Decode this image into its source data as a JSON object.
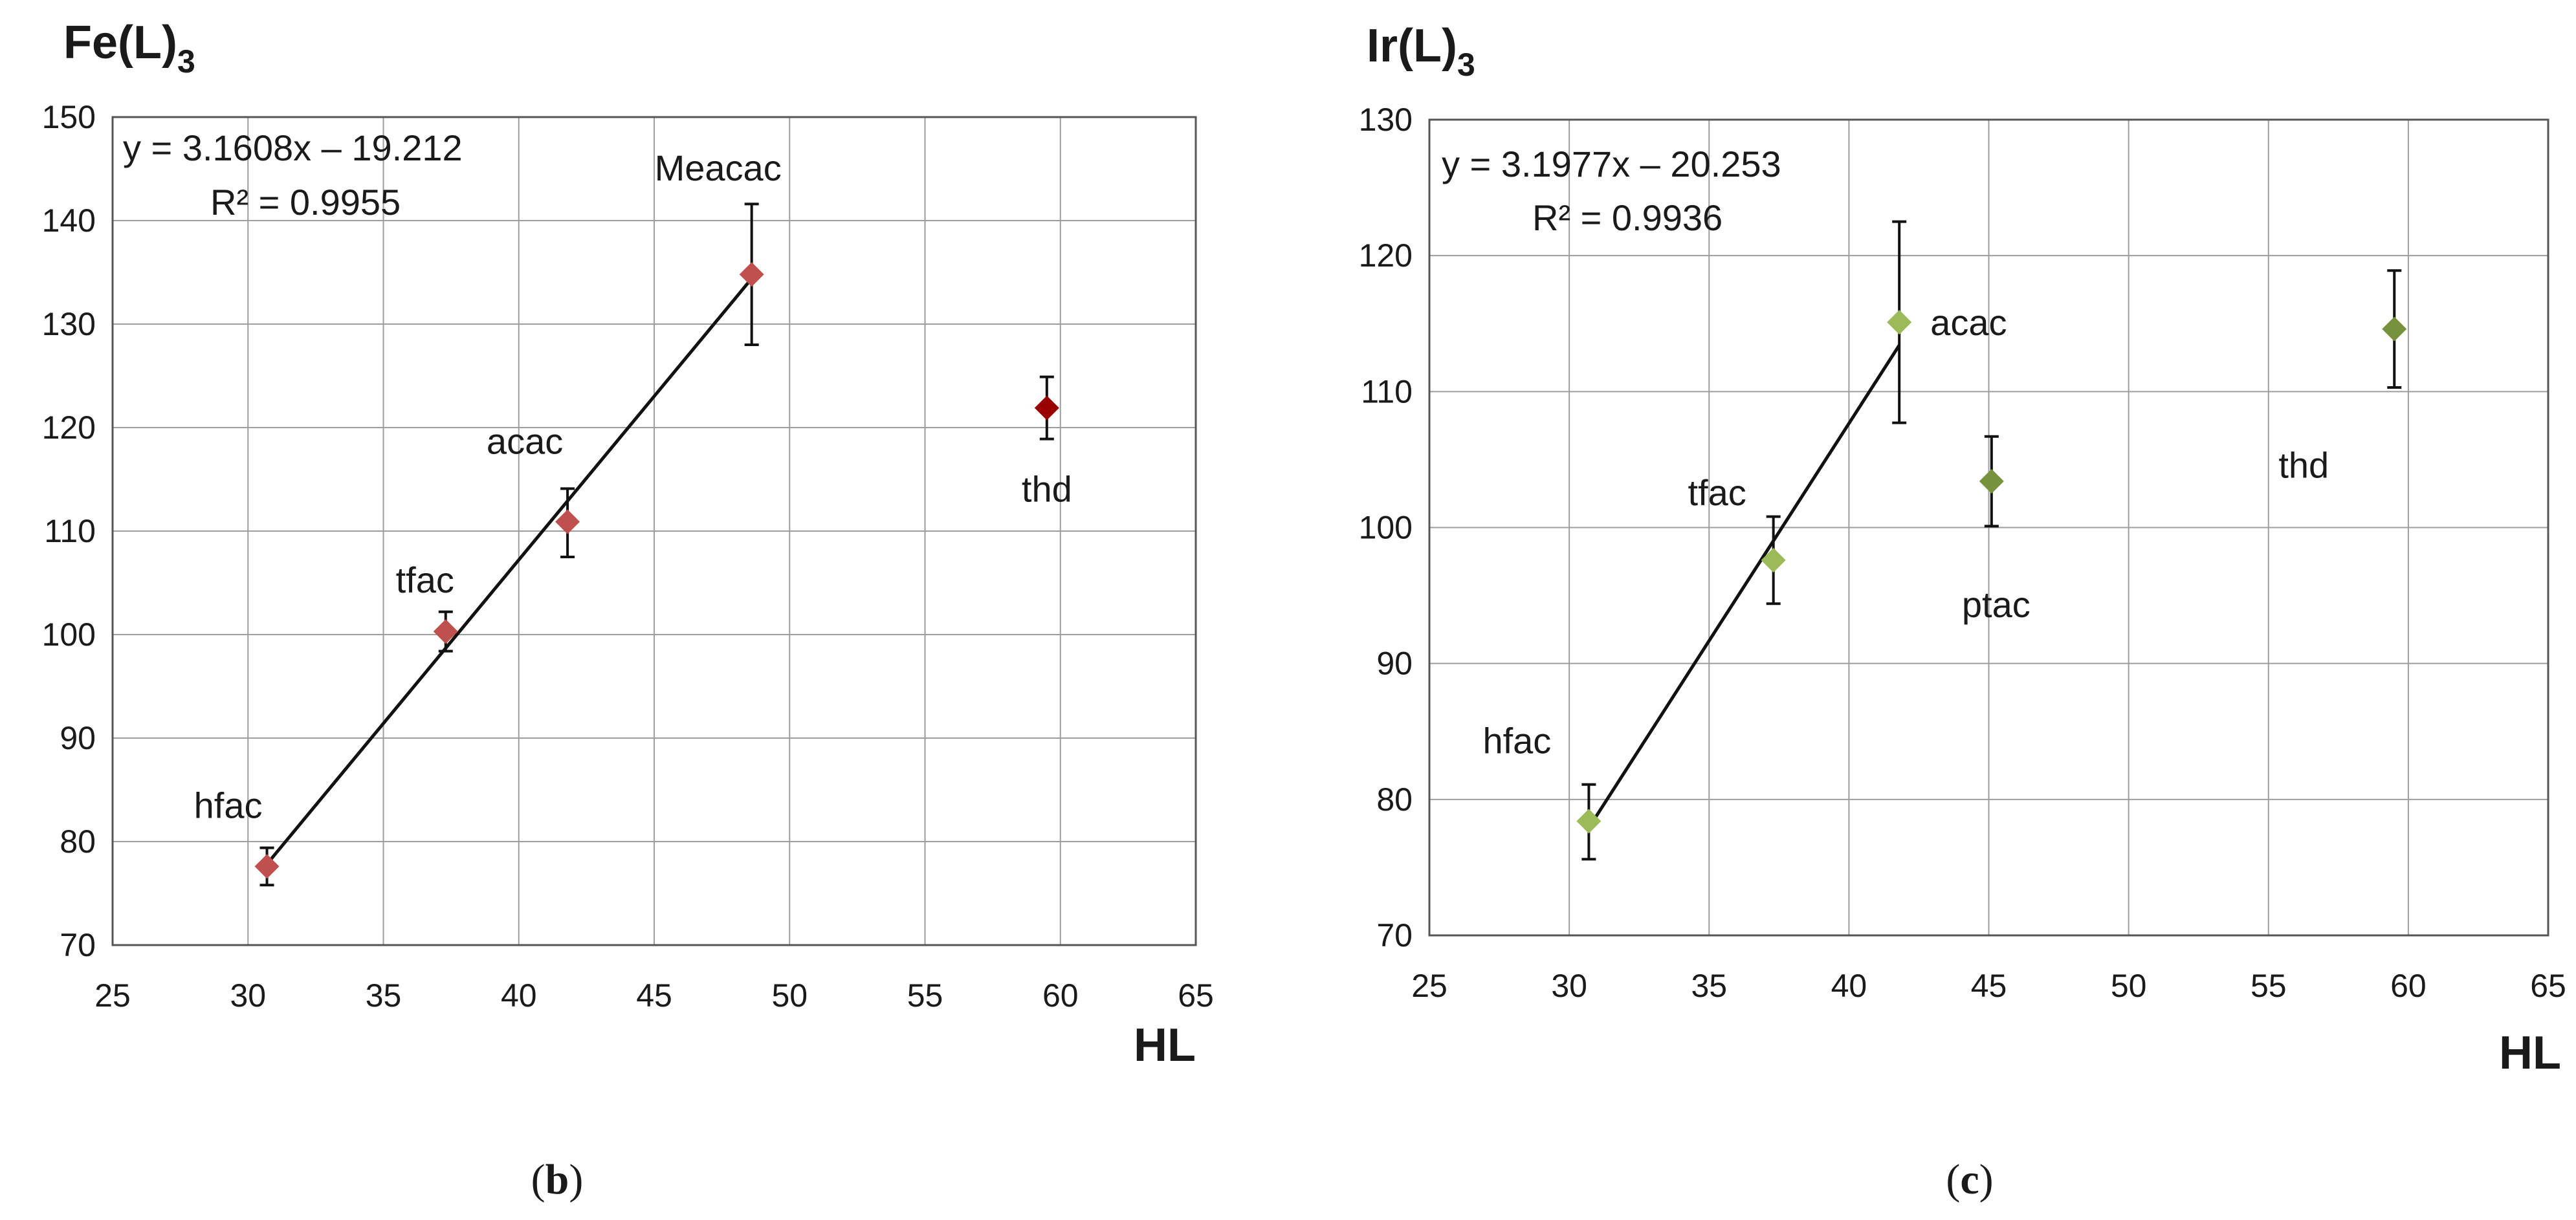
{
  "chart_data": [
    {
      "id": "fe",
      "type": "scatter",
      "title": "Fe(L)3",
      "title_main": "Fe(L)",
      "title_sub": "3",
      "xlabel": "HL",
      "ylabel": "",
      "panel_label": "(b)",
      "panel_letter": "b",
      "xlim": [
        25,
        65
      ],
      "ylim": [
        70,
        150
      ],
      "xticks": [
        25,
        30,
        35,
        40,
        45,
        50,
        55,
        60,
        65
      ],
      "yticks": [
        70,
        80,
        90,
        100,
        110,
        120,
        130,
        140,
        150
      ],
      "grid": true,
      "equation": "y = 3.1608x – 19.212",
      "r_squared": "R² = 0.9955",
      "fit": {
        "slope": 3.1608,
        "intercept": -19.212,
        "x_range": [
          30.7,
          48.6
        ]
      },
      "points": [
        {
          "label": "hfac",
          "x": 30.7,
          "y": 77.6,
          "err_low": 1.8,
          "err_high": 1.8,
          "color": "#c0504d"
        },
        {
          "label": "tfac",
          "x": 37.3,
          "y": 100.3,
          "err_low": 1.9,
          "err_high": 1.9,
          "color": "#c0504d"
        },
        {
          "label": "acac",
          "x": 41.8,
          "y": 110.9,
          "err_low": 3.4,
          "err_high": 3.2,
          "color": "#c0504d"
        },
        {
          "label": "Meacac",
          "x": 48.6,
          "y": 134.8,
          "err_low": 6.8,
          "err_high": 6.8,
          "color": "#c0504d"
        },
        {
          "label": "thd",
          "x": 59.5,
          "y": 121.9,
          "err_low": 3.0,
          "err_high": 3.0,
          "color": "#9b0000"
        }
      ]
    },
    {
      "id": "ir",
      "type": "scatter",
      "title": "Ir(L)3",
      "title_main": "Ir(L)",
      "title_sub": "3",
      "xlabel": "HL",
      "ylabel": "",
      "panel_label": "(c)",
      "panel_letter": "c",
      "xlim": [
        25,
        65
      ],
      "ylim": [
        70,
        130
      ],
      "xticks": [
        25,
        30,
        35,
        40,
        45,
        50,
        55,
        60,
        65
      ],
      "yticks": [
        70,
        80,
        90,
        100,
        110,
        120,
        130
      ],
      "grid": true,
      "equation": "y = 3.1977x – 20.253",
      "r_squared": "R² = 0.9936",
      "fit": {
        "slope": 3.1977,
        "intercept": -20.253,
        "x_range": [
          30.7,
          41.8
        ]
      },
      "points": [
        {
          "label": "hfac",
          "x": 30.7,
          "y": 78.4,
          "err_low": 2.8,
          "err_high": 2.7,
          "color": "#9bbb59"
        },
        {
          "label": "tfac",
          "x": 37.3,
          "y": 97.6,
          "err_low": 3.2,
          "err_high": 3.2,
          "color": "#9bbb59"
        },
        {
          "label": "acac",
          "x": 41.8,
          "y": 115.1,
          "err_low": 7.4,
          "err_high": 7.4,
          "color": "#9bbb59"
        },
        {
          "label": "ptac",
          "x": 45.1,
          "y": 103.4,
          "err_low": 3.3,
          "err_high": 3.3,
          "color": "#76923c"
        },
        {
          "label": "thd",
          "x": 59.5,
          "y": 114.6,
          "err_low": 4.3,
          "err_high": 4.3,
          "color": "#76923c"
        }
      ]
    }
  ]
}
